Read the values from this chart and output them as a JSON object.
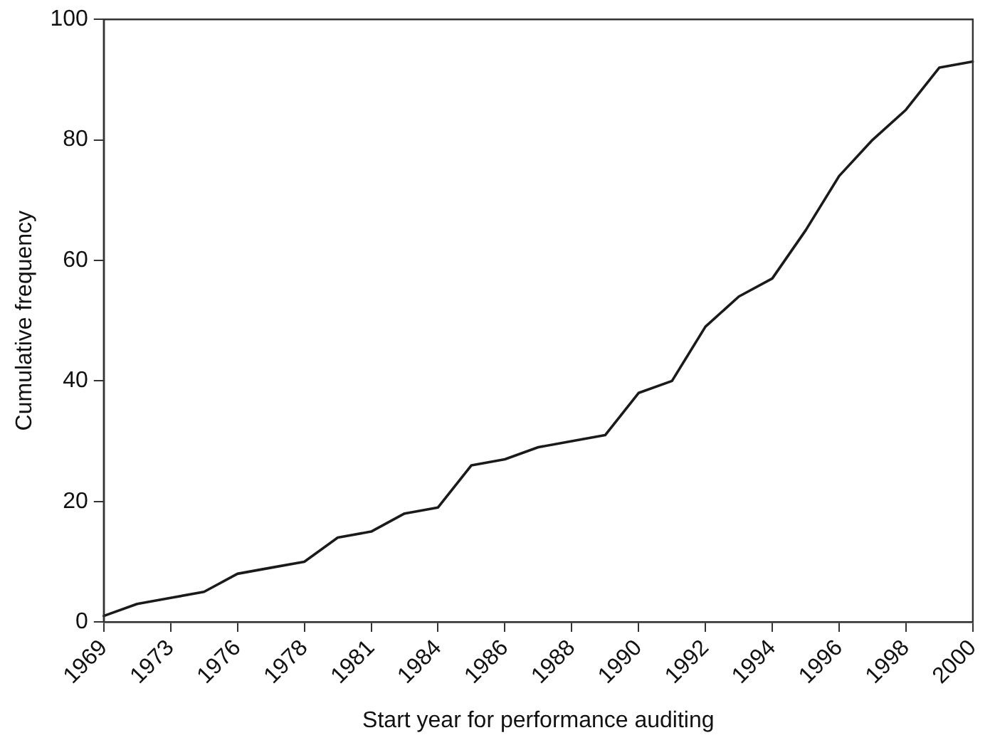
{
  "chart_data": {
    "type": "line",
    "xlabel": "Start year for performance auditing",
    "ylabel": "Cumulative frequency",
    "categories": [
      "1969",
      null,
      "1973",
      null,
      "1976",
      null,
      "1978",
      null,
      "1981",
      null,
      "1984",
      null,
      "1986",
      null,
      "1988",
      null,
      "1990",
      null,
      "1992",
      null,
      "1994",
      null,
      "1996",
      null,
      "1998",
      null,
      "2000"
    ],
    "series": [
      {
        "color": "#1a1a1a",
        "values": [
          1,
          3,
          4,
          5,
          8,
          9,
          10,
          14,
          15,
          18,
          19,
          26,
          27,
          29,
          30,
          31,
          38,
          40,
          49,
          54,
          57,
          65,
          74,
          80,
          85,
          92,
          93
        ]
      }
    ],
    "ylim": [
      0,
      100
    ],
    "yticks": [
      0,
      20,
      40,
      60,
      80,
      100
    ],
    "grid": false,
    "legend": false,
    "marker": "none",
    "line_style": "solid"
  }
}
